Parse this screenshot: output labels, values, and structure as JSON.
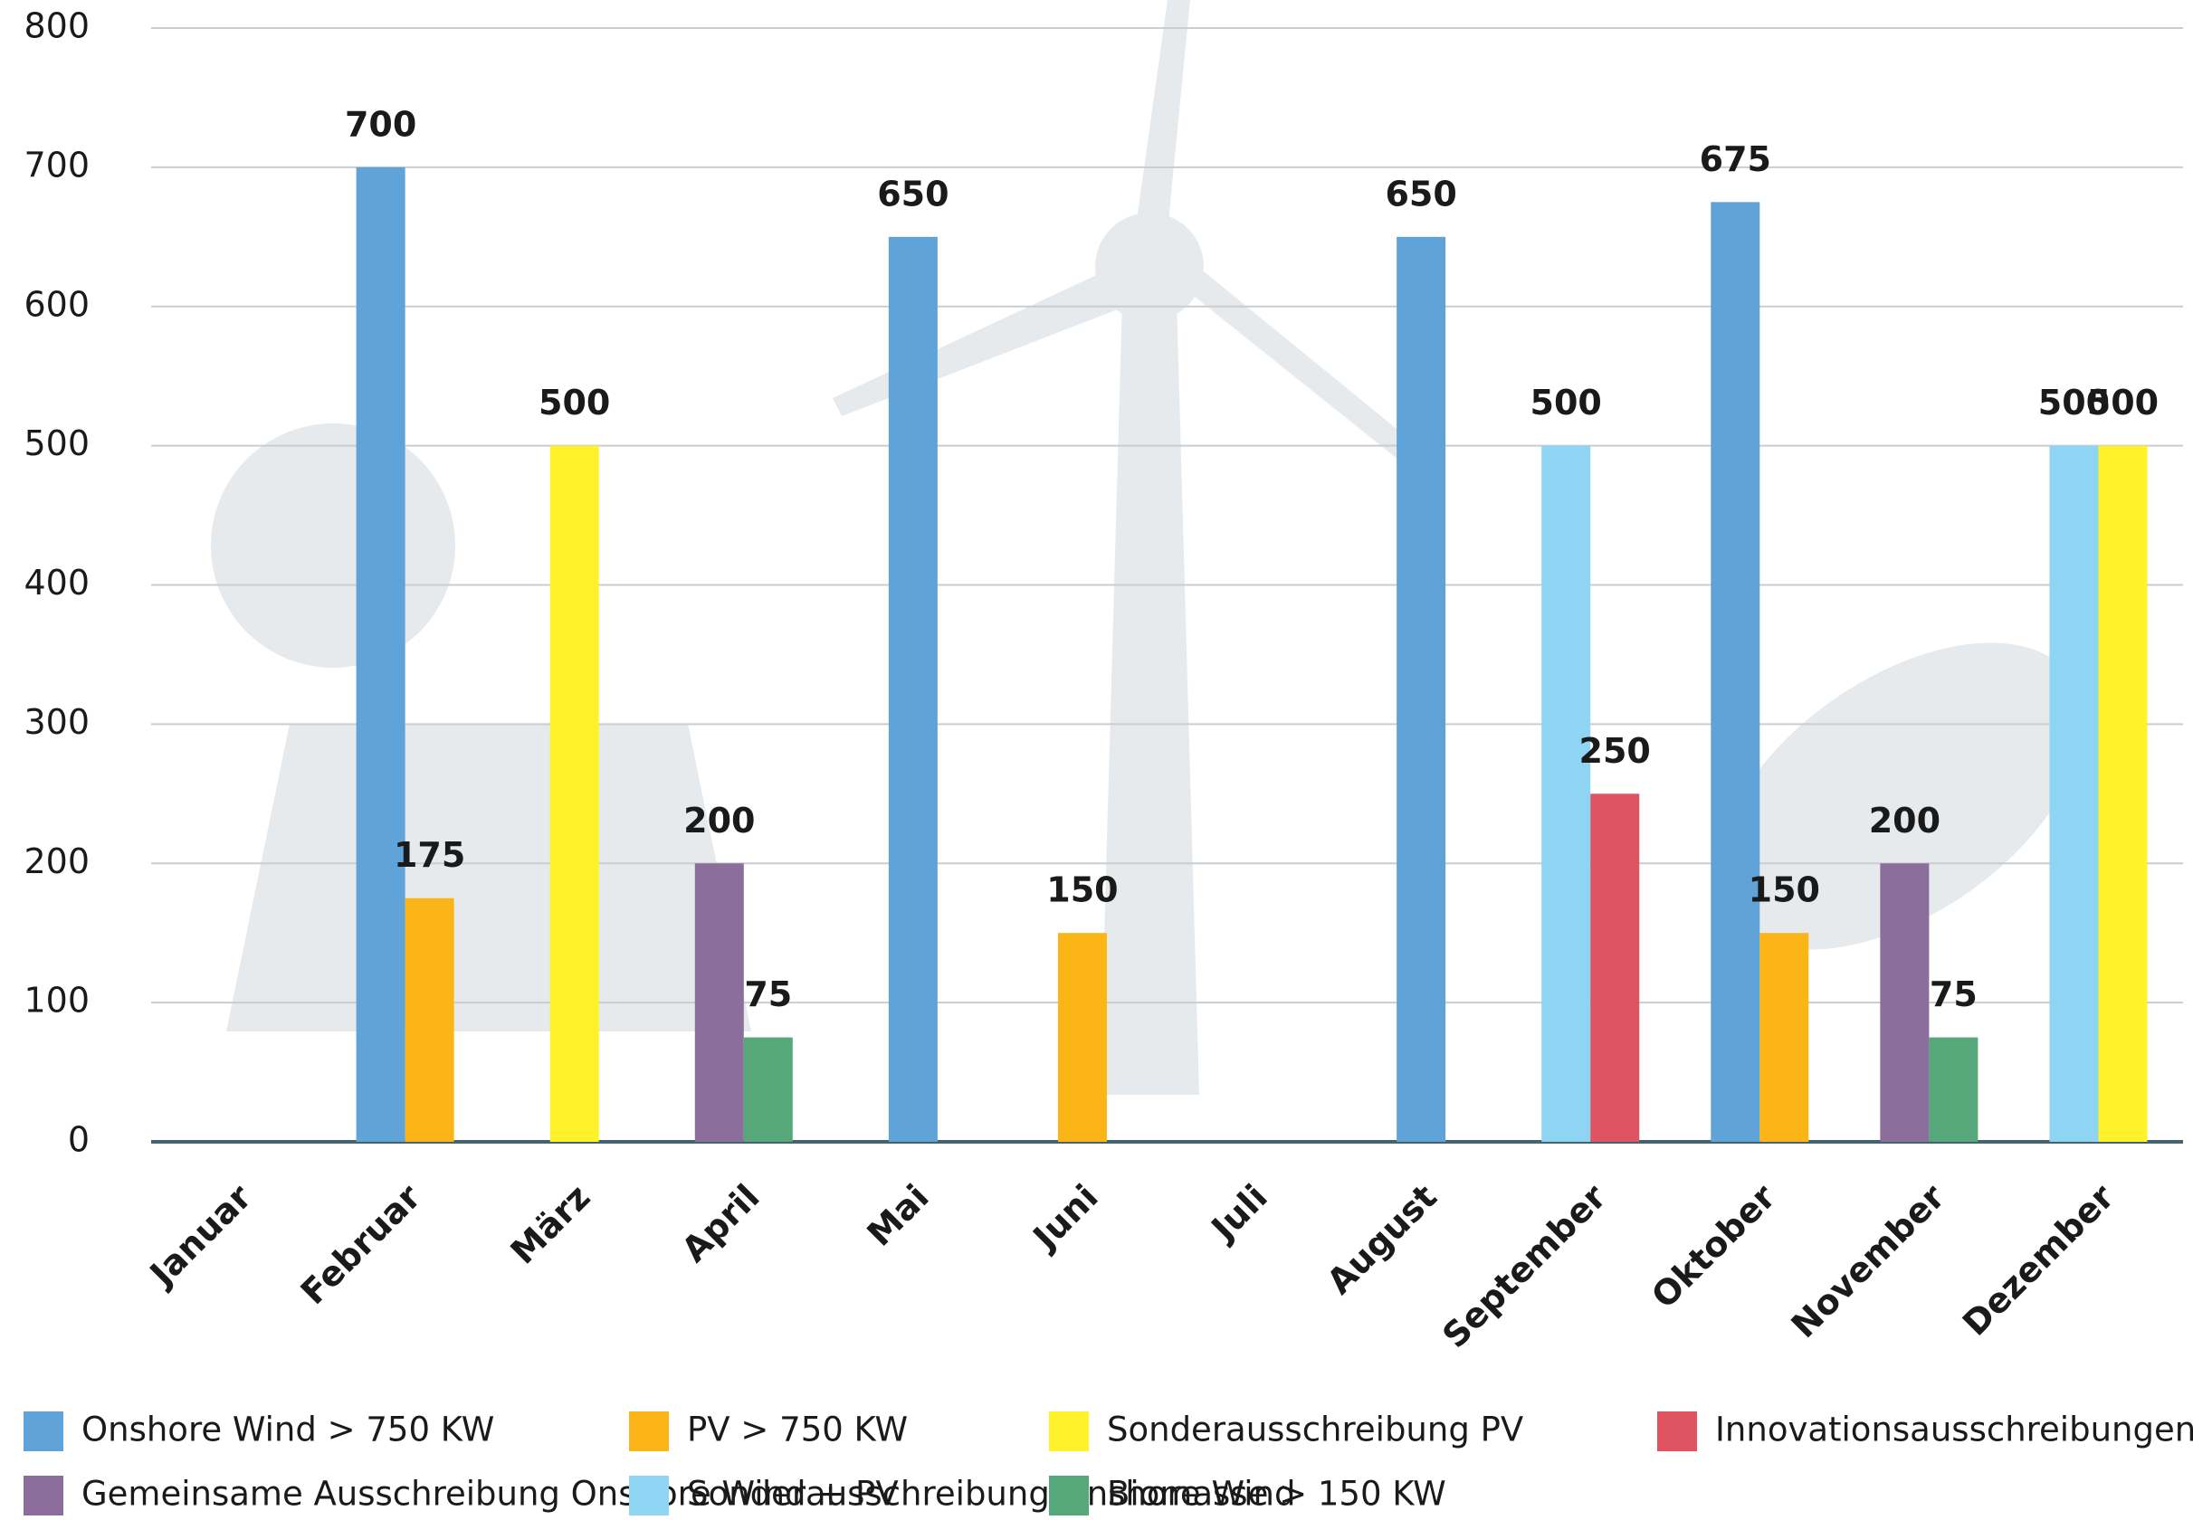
{
  "chart_data": {
    "type": "bar",
    "categories": [
      "Januar",
      "Februar",
      "März",
      "April",
      "Mai",
      "Juni",
      "Juli",
      "August",
      "September",
      "Oktober",
      "November",
      "Dezember"
    ],
    "series": [
      {
        "name": "Onshore Wind > 750 KW",
        "color": "#5fa3d8",
        "values": [
          null,
          700,
          null,
          null,
          650,
          null,
          null,
          650,
          null,
          675,
          null,
          null
        ]
      },
      {
        "name": "PV > 750 KW",
        "color": "#fbb516",
        "values": [
          null,
          175,
          null,
          null,
          null,
          150,
          null,
          null,
          null,
          150,
          null,
          null
        ]
      },
      {
        "name": "Sonderausschreibung PV",
        "color": "#fff22a",
        "values": [
          null,
          null,
          500,
          null,
          null,
          null,
          null,
          null,
          null,
          null,
          null,
          500
        ]
      },
      {
        "name": "Innovationsausschreibungen",
        "color": "#e05360",
        "values": [
          null,
          null,
          null,
          null,
          null,
          null,
          null,
          null,
          250,
          null,
          null,
          null
        ]
      },
      {
        "name": "Gemeinsame Ausschreibung Onshore Wind + PV",
        "color": "#8b6e9b",
        "values": [
          null,
          null,
          null,
          200,
          null,
          null,
          null,
          null,
          null,
          null,
          200,
          null
        ]
      },
      {
        "name": "Sonderausschreibung Onshore Wind",
        "color": "#8dd5f2",
        "values": [
          null,
          null,
          null,
          null,
          null,
          null,
          null,
          null,
          500,
          null,
          null,
          500
        ]
      },
      {
        "name": "Biomasse > 150 KW",
        "color": "#56a87a",
        "values": [
          null,
          null,
          null,
          75,
          null,
          null,
          null,
          null,
          null,
          null,
          75,
          null
        ]
      }
    ],
    "ylim": [
      0,
      800
    ],
    "yticks": [
      0,
      100,
      200,
      300,
      400,
      500,
      600,
      700,
      800
    ],
    "grid": true
  }
}
